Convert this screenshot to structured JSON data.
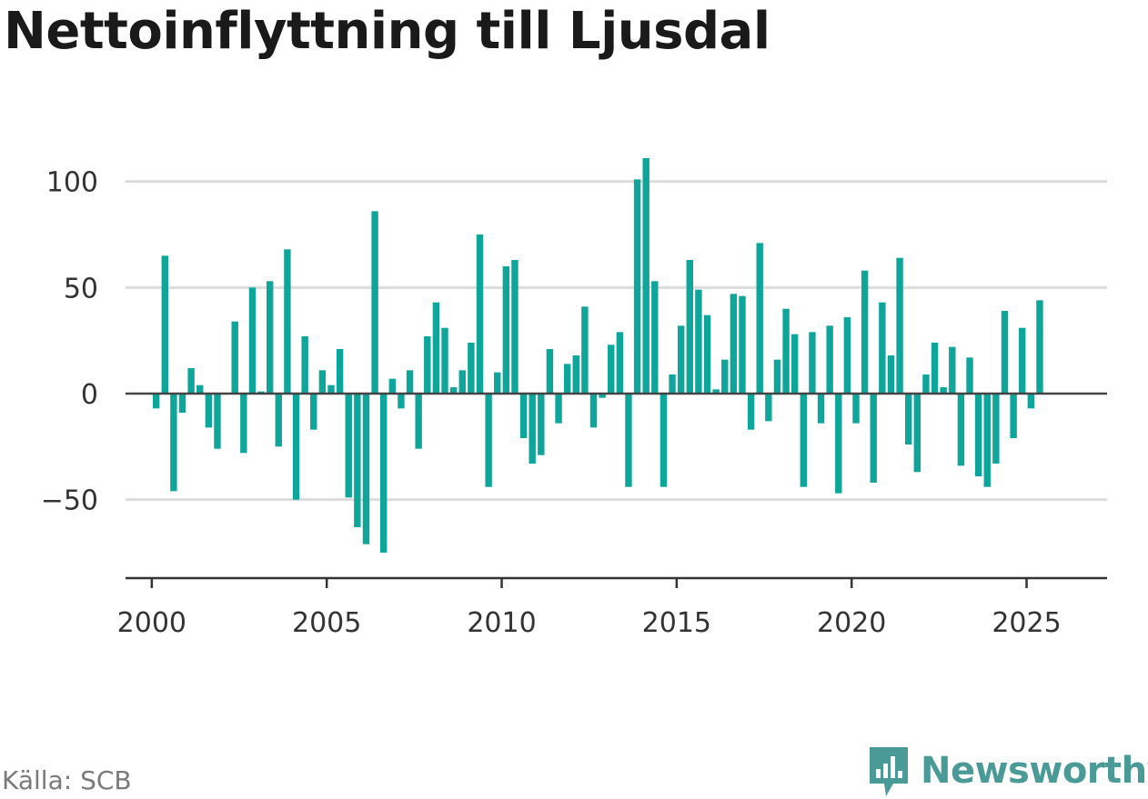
{
  "title": "Nettoinflyttning till Ljusdal",
  "source": "Källa: SCB",
  "brand": {
    "name": "Newsworthy",
    "icon": "newsworthy-logo-icon",
    "color": "#4a9a97"
  },
  "chart_data": {
    "type": "bar",
    "title": "Nettoinflyttning till Ljusdal",
    "xlabel": "",
    "ylabel": "",
    "ylim": [
      -87,
      117
    ],
    "xlim": [
      1999.25,
      2027.3
    ],
    "grid": true,
    "bar_color": "#0ea59a",
    "y_ticks": [
      -50,
      0,
      50,
      100
    ],
    "y_tick_labels": [
      "−50",
      "0",
      "50",
      "100"
    ],
    "x_ticks": [
      2000,
      2005,
      2010,
      2015,
      2020,
      2025
    ],
    "x_tick_labels": [
      "2000",
      "2005",
      "2010",
      "2015",
      "2020",
      "2025"
    ],
    "x": [
      "2000Q1",
      "2000Q2",
      "2000Q3",
      "2000Q4",
      "2001Q1",
      "2001Q2",
      "2001Q3",
      "2001Q4",
      "2002Q1",
      "2002Q2",
      "2002Q3",
      "2002Q4",
      "2003Q1",
      "2003Q2",
      "2003Q3",
      "2003Q4",
      "2004Q1",
      "2004Q2",
      "2004Q3",
      "2004Q4",
      "2005Q1",
      "2005Q2",
      "2005Q3",
      "2005Q4",
      "2006Q1",
      "2006Q2",
      "2006Q3",
      "2006Q4",
      "2007Q1",
      "2007Q2",
      "2007Q3",
      "2007Q4",
      "2008Q1",
      "2008Q2",
      "2008Q3",
      "2008Q4",
      "2009Q1",
      "2009Q2",
      "2009Q3",
      "2009Q4",
      "2010Q1",
      "2010Q2",
      "2010Q3",
      "2010Q4",
      "2011Q1",
      "2011Q2",
      "2011Q3",
      "2011Q4",
      "2012Q1",
      "2012Q2",
      "2012Q3",
      "2012Q4",
      "2013Q1",
      "2013Q2",
      "2013Q3",
      "2013Q4",
      "2014Q1",
      "2014Q2",
      "2014Q3",
      "2014Q4",
      "2015Q1",
      "2015Q2",
      "2015Q3",
      "2015Q4",
      "2016Q1",
      "2016Q2",
      "2016Q3",
      "2016Q4",
      "2017Q1",
      "2017Q2",
      "2017Q3",
      "2017Q4",
      "2018Q1",
      "2018Q2",
      "2018Q3",
      "2018Q4",
      "2019Q1",
      "2019Q2",
      "2019Q3",
      "2019Q4",
      "2020Q1",
      "2020Q2",
      "2020Q3",
      "2020Q4",
      "2021Q1",
      "2021Q2",
      "2021Q3",
      "2021Q4",
      "2022Q1",
      "2022Q2",
      "2022Q3",
      "2022Q4",
      "2023Q1",
      "2023Q2",
      "2023Q3",
      "2023Q4",
      "2024Q1",
      "2024Q2",
      "2024Q3",
      "2024Q4",
      "2025Q1",
      "2025Q2"
    ],
    "values": [
      -7,
      65,
      -46,
      -9,
      12,
      4,
      -16,
      -26,
      0,
      34,
      -28,
      50,
      1,
      53,
      -25,
      68,
      -50,
      27,
      -17,
      11,
      4,
      21,
      -49,
      -63,
      -71,
      86,
      -75,
      7,
      -7,
      11,
      -26,
      27,
      43,
      31,
      3,
      11,
      24,
      75,
      -44,
      10,
      60,
      63,
      -21,
      -33,
      -29,
      21,
      -14,
      14,
      18,
      41,
      -16,
      -2,
      23,
      29,
      -44,
      101,
      111,
      53,
      -44,
      9,
      32,
      63,
      49,
      37,
      2,
      16,
      47,
      46,
      -17,
      71,
      -13,
      16,
      40,
      28,
      -44,
      29,
      -14,
      32,
      -47,
      36,
      -14,
      58,
      -42,
      43,
      18,
      64,
      -24,
      -37,
      9,
      24,
      3,
      22,
      -34,
      17,
      -39,
      -44,
      -33,
      39,
      -21,
      31,
      -7,
      44
    ]
  }
}
